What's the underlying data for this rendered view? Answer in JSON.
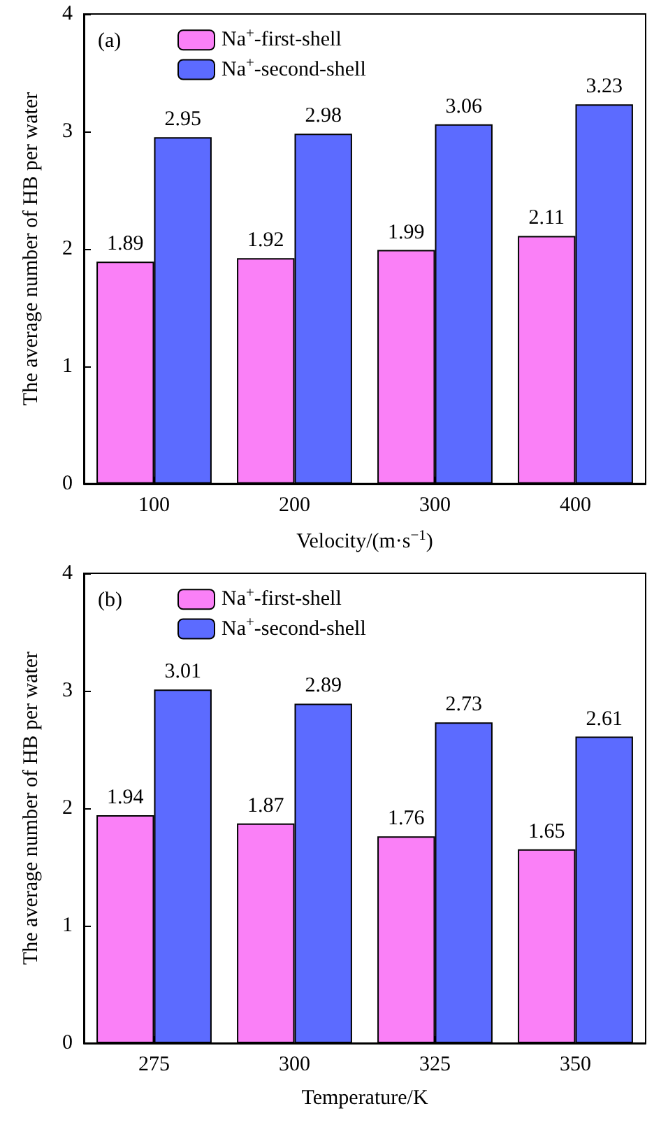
{
  "chart_data": [
    {
      "type": "bar",
      "categories": [
        "100",
        "200",
        "300",
        "400"
      ],
      "xlabel": "Velocity/(m·s$^{−1}$)",
      "ylabel": "The average number of HB per water",
      "ylim": [
        0,
        4
      ],
      "yticks": [
        0,
        1,
        2,
        3,
        4
      ],
      "grid": false,
      "legend": "top left",
      "data_labels": true,
      "annotations": [
        "(a)"
      ],
      "series": [
        {
          "name": "Na$^{+}$-first-shell",
          "color": "#fa80f7",
          "values": [
            1.89,
            1.92,
            1.99,
            2.11
          ]
        },
        {
          "name": "Na$^{+}$-second-shell",
          "color": "#5c6bff",
          "values": [
            2.95,
            2.98,
            3.06,
            3.23
          ]
        }
      ]
    },
    {
      "type": "bar",
      "categories": [
        "275",
        "300",
        "325",
        "350"
      ],
      "xlabel": "Temperature/K",
      "ylabel": "The average number of HB per water",
      "ylim": [
        0,
        4
      ],
      "yticks": [
        0,
        1,
        2,
        3,
        4
      ],
      "grid": false,
      "legend": "top left",
      "data_labels": true,
      "annotations": [
        "(b)"
      ],
      "series": [
        {
          "name": "Na$^{+}$-first-shell",
          "color": "#fa80f7",
          "values": [
            1.94,
            1.87,
            1.76,
            1.65
          ]
        },
        {
          "name": "Na$^{+}$-second-shell",
          "color": "#5c6bff",
          "values": [
            3.01,
            2.89,
            2.73,
            2.61
          ]
        }
      ]
    }
  ]
}
